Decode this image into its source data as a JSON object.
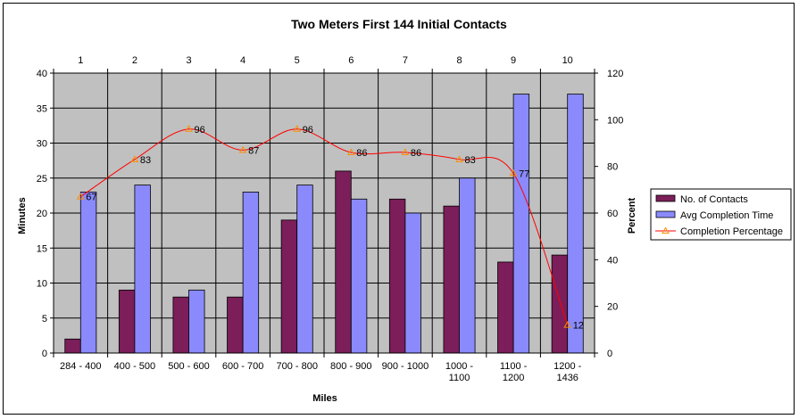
{
  "chart_data": {
    "type": "bar",
    "title": "Two Meters First 144 Initial Contacts",
    "xlabel": "Miles",
    "ylabel": "Minutes",
    "y2label": "Percent",
    "categories": [
      [
        "284 - 400"
      ],
      [
        "400 - 500"
      ],
      [
        "500 - 600"
      ],
      [
        "600 - 700"
      ],
      [
        "700 - 800"
      ],
      [
        "800 - 900"
      ],
      [
        "900 - 1000"
      ],
      [
        "1000 -",
        "1100"
      ],
      [
        "1100 -",
        "1200"
      ],
      [
        "1200 -",
        "1436"
      ]
    ],
    "top_axis_labels": [
      "1",
      "2",
      "3",
      "4",
      "5",
      "6",
      "7",
      "8",
      "9",
      "10"
    ],
    "ylim": [
      0,
      40
    ],
    "yticks": [
      0,
      5,
      10,
      15,
      20,
      25,
      30,
      35,
      40
    ],
    "y2lim": [
      0,
      120
    ],
    "y2ticks": [
      0,
      20,
      40,
      60,
      80,
      100,
      120
    ],
    "grid": true,
    "legend_position": "right",
    "plot_background": "#c0c0c0",
    "series": [
      {
        "name": "No. of Contacts",
        "kind": "bar",
        "axis": "left",
        "color": "#7b1e5a",
        "values": [
          2,
          9,
          8,
          8,
          19,
          26,
          22,
          21,
          13,
          14
        ]
      },
      {
        "name": "Avg Completion Time",
        "kind": "bar",
        "axis": "left",
        "color": "#8a8afc",
        "values": [
          23,
          24,
          9,
          23,
          24,
          22,
          20,
          25,
          37,
          37
        ]
      },
      {
        "name": "Completion Percentage",
        "kind": "line",
        "axis": "right",
        "color": "#ff0000",
        "marker_color": "#ff8c00",
        "values": [
          67,
          83,
          96,
          87,
          96,
          86,
          86,
          83,
          77,
          12
        ],
        "labels": [
          "67",
          "83",
          "96",
          "87",
          "96",
          "86",
          "86",
          "83",
          "77",
          "12"
        ]
      }
    ]
  }
}
